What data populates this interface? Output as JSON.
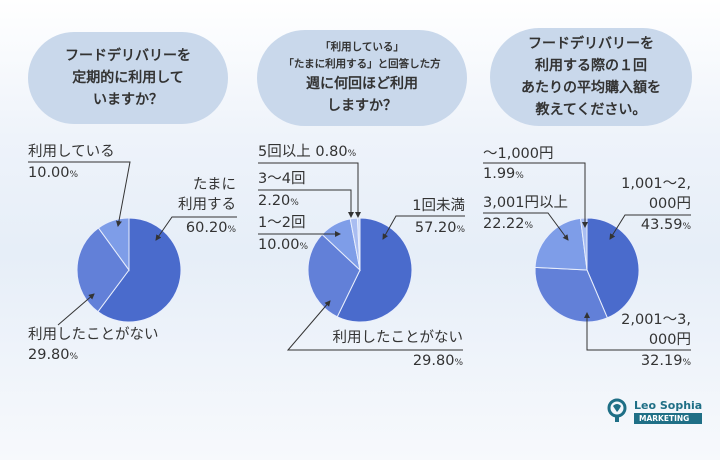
{
  "colors": {
    "s1": "#4a6bcc",
    "s2": "#6280d8",
    "s3": "#7e9de8",
    "s4": "#a9bdf1",
    "s5": "#cbd8f8",
    "bubble": "#c9d8eb"
  },
  "questions": [
    {
      "lines": [
        "フードデリバリーを",
        "定期的に利用して",
        "いますか？"
      ]
    },
    {
      "sub": [
        "「利用している」",
        "「たまに利用する」と回答した方"
      ],
      "lines": [
        "週に何回ほど利用",
        "しますか？"
      ]
    },
    {
      "lines": [
        "フードデリバリーを",
        "利用する際の１回",
        "あたりの平均購入額を",
        "教えてください。"
      ]
    }
  ],
  "chart_data": [
    {
      "type": "pie",
      "title": "フードデリバリーを定期的に利用していますか？",
      "unit": "%",
      "slices": [
        {
          "label": "たまに利用する",
          "value": 60.2,
          "value_text": "60.20"
        },
        {
          "label": "利用したことがない",
          "value": 29.8,
          "value_text": "29.80"
        },
        {
          "label": "利用している",
          "value": 10.0,
          "value_text": "10.00"
        }
      ]
    },
    {
      "type": "pie",
      "title": "週に何回ほど利用しますか？",
      "unit": "%",
      "slices": [
        {
          "label": "1回未満",
          "value": 57.2,
          "value_text": "57.20"
        },
        {
          "label": "利用したことがない",
          "value": 29.8,
          "value_text": "29.80"
        },
        {
          "label": "1～2回",
          "value": 10.0,
          "value_text": "10.00"
        },
        {
          "label": "3～4回",
          "value": 2.2,
          "value_text": "2.20"
        },
        {
          "label": "5回以上",
          "value": 0.8,
          "value_text": "0.80"
        }
      ]
    },
    {
      "type": "pie",
      "title": "利用する際の１回あたりの平均購入額",
      "unit": "%",
      "slices": [
        {
          "label": "1,001～2,000円",
          "value": 43.59,
          "value_text": "43.59"
        },
        {
          "label": "2,001～3,000円",
          "value": 32.19,
          "value_text": "32.19"
        },
        {
          "label": "3,001円以上",
          "value": 22.22,
          "value_text": "22.22"
        },
        {
          "label": "～1,000円",
          "value": 1.99,
          "value_text": "1.99"
        }
      ]
    }
  ],
  "labels": {
    "c1": {
      "a1": "たまに",
      "a2": "利用する",
      "c": "利用している",
      "b": "利用したことがない"
    },
    "c3": {
      "a1": "1,001～",
      "a2": "2,000円",
      "b1": "2,001～",
      "b2": "3,000円"
    }
  },
  "percent": "%",
  "logo": {
    "name": "Leo Sophia",
    "tag": "MARKETING"
  }
}
